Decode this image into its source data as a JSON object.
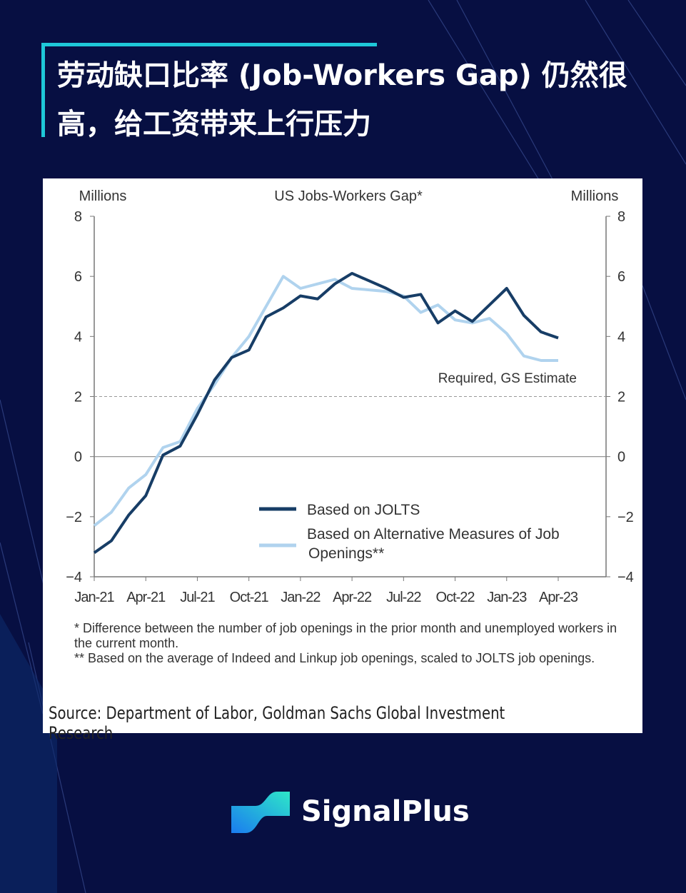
{
  "title": "劳动缺口比率 (Job-Workers Gap) 仍然很高，给工资带来上行压力",
  "footnotes": [
    "* Difference between the number of job openings in the prior month and unemployed workers in the current month.",
    "** Based on the average of Indeed and Linkup job openings, scaled to JOLTS job openings."
  ],
  "source": "Source: Department of Labor, Goldman Sachs Global Investment Research",
  "brand": "SignalPlus",
  "colors": {
    "background": "#070f42",
    "accent": "#1ec8d8",
    "jolts": "#173d66",
    "alt": "#b0d3ee"
  },
  "chart_data": {
    "type": "line",
    "title": "US Jobs-Workers Gap*",
    "ylabel_left": "Millions",
    "ylabel_right": "Millions",
    "ylim": [
      -4,
      8
    ],
    "yticks": [
      -4,
      -2,
      0,
      2,
      4,
      6,
      8
    ],
    "ytick_labels": [
      "−4",
      "−2",
      "0",
      "2",
      "4",
      "6",
      "8"
    ],
    "x": [
      "Jan-21",
      "Feb-21",
      "Mar-21",
      "Apr-21",
      "May-21",
      "Jun-21",
      "Jul-21",
      "Aug-21",
      "Sep-21",
      "Oct-21",
      "Nov-21",
      "Dec-21",
      "Jan-22",
      "Feb-22",
      "Mar-22",
      "Apr-22",
      "May-22",
      "Jun-22",
      "Jul-22",
      "Aug-22",
      "Sep-22",
      "Oct-22",
      "Nov-22",
      "Dec-22",
      "Jan-23",
      "Feb-23",
      "Mar-23",
      "Apr-23"
    ],
    "xtick_labels": [
      "Jan-21",
      "Apr-21",
      "Jul-21",
      "Oct-21",
      "Jan-22",
      "Apr-22",
      "Jul-22",
      "Oct-22",
      "Jan-23",
      "Apr-23"
    ],
    "series": [
      {
        "name": "Based on JOLTS",
        "values": [
          -3.2,
          -2.8,
          -1.95,
          -1.3,
          0.05,
          0.35,
          1.4,
          2.55,
          3.3,
          3.55,
          4.65,
          4.95,
          5.35,
          5.25,
          5.75,
          6.1,
          5.85,
          5.6,
          5.3,
          5.4,
          4.45,
          4.85,
          4.5,
          5.05,
          5.6,
          4.7,
          4.15,
          3.95
        ]
      },
      {
        "name": "Based on Alternative Measures of Job Openings**",
        "values": [
          -2.3,
          -1.85,
          -1.05,
          -0.6,
          0.3,
          0.5,
          1.6,
          2.4,
          3.3,
          4.0,
          5.0,
          6.0,
          5.6,
          5.75,
          5.9,
          5.6,
          5.55,
          5.5,
          5.35,
          4.8,
          5.05,
          4.55,
          4.45,
          4.6,
          4.1,
          3.35,
          3.2,
          3.2
        ]
      }
    ],
    "reference_line": {
      "value": 2,
      "label": "Required, GS Estimate",
      "style": "dashed"
    },
    "legend_placement": "bottom-center",
    "grid": false
  }
}
